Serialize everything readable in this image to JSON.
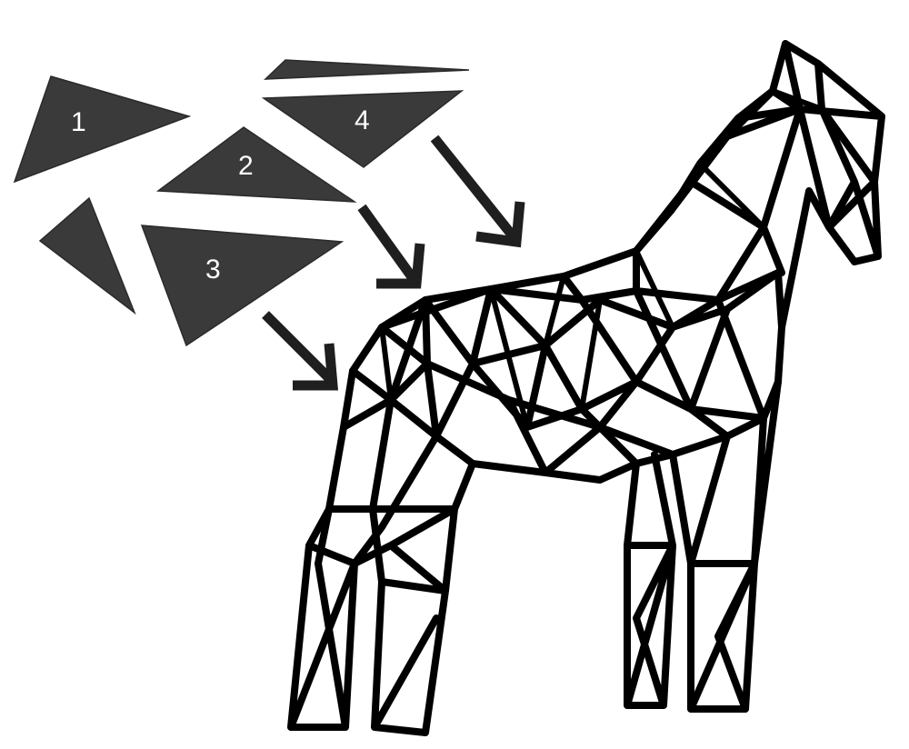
{
  "pieces": [
    {
      "label": "1"
    },
    {
      "label": "2"
    },
    {
      "label": "3"
    },
    {
      "label": "4"
    }
  ],
  "colors": {
    "piece_fill": "#3a3a3a",
    "arrow": "#1f1f1f",
    "wireframe": "#000000",
    "label_text": "#ffffff",
    "background": "#ffffff"
  }
}
